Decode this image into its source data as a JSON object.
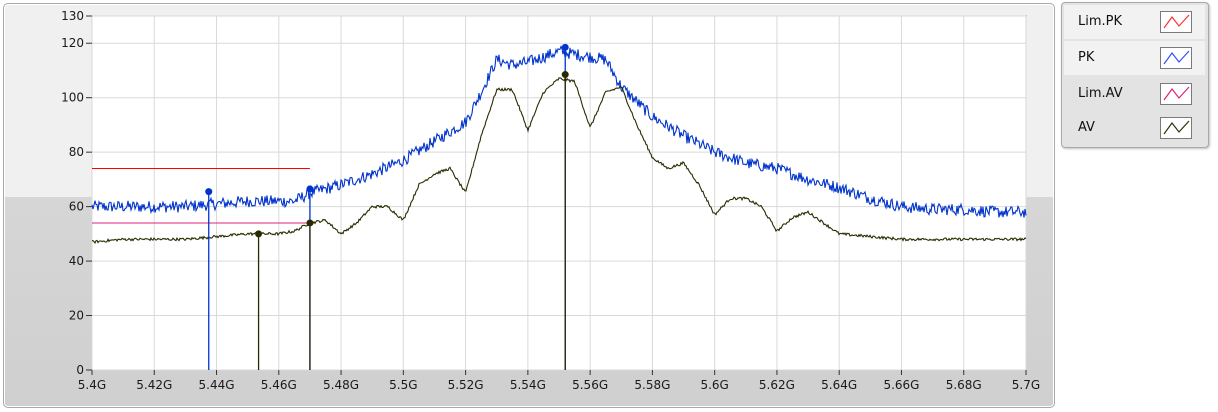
{
  "chart_data": {
    "type": "line",
    "title": "",
    "xlabel": "",
    "ylabel": "",
    "xlim": [
      5.4,
      5.7
    ],
    "ylim": [
      0,
      130
    ],
    "x_ticks": [
      {
        "v": 5.4,
        "label": "5.4G"
      },
      {
        "v": 5.42,
        "label": "5.42G"
      },
      {
        "v": 5.44,
        "label": "5.44G"
      },
      {
        "v": 5.46,
        "label": "5.46G"
      },
      {
        "v": 5.48,
        "label": "5.48G"
      },
      {
        "v": 5.5,
        "label": "5.5G"
      },
      {
        "v": 5.52,
        "label": "5.52G"
      },
      {
        "v": 5.54,
        "label": "5.54G"
      },
      {
        "v": 5.56,
        "label": "5.56G"
      },
      {
        "v": 5.58,
        "label": "5.58G"
      },
      {
        "v": 5.6,
        "label": "5.6G"
      },
      {
        "v": 5.62,
        "label": "5.62G"
      },
      {
        "v": 5.64,
        "label": "5.64G"
      },
      {
        "v": 5.66,
        "label": "5.66G"
      },
      {
        "v": 5.68,
        "label": "5.68G"
      },
      {
        "v": 5.7,
        "label": "5.7G"
      }
    ],
    "y_ticks": [
      {
        "v": 0,
        "label": "0"
      },
      {
        "v": 20,
        "label": "20"
      },
      {
        "v": 40,
        "label": "40"
      },
      {
        "v": 60,
        "label": "60"
      },
      {
        "v": 80,
        "label": "80"
      },
      {
        "v": 100,
        "label": "100"
      },
      {
        "v": 120,
        "label": "120"
      },
      {
        "v": 130,
        "label": "130"
      }
    ],
    "grid": true,
    "legend_position": "outside-top-right",
    "series": [
      {
        "name": "Lim.PK",
        "color": "#ff0000",
        "x": [
          5.4,
          5.47
        ],
        "y": [
          74,
          74
        ]
      },
      {
        "name": "PK",
        "color": "#0033cc",
        "x": [
          5.4,
          5.41,
          5.42,
          5.43,
          5.44,
          5.45,
          5.46,
          5.465,
          5.47,
          5.48,
          5.49,
          5.5,
          5.51,
          5.52,
          5.525,
          5.53,
          5.535,
          5.54,
          5.545,
          5.55,
          5.555,
          5.56,
          5.565,
          5.57,
          5.58,
          5.59,
          5.6,
          5.61,
          5.62,
          5.63,
          5.64,
          5.65,
          5.66,
          5.67,
          5.68,
          5.69,
          5.7
        ],
        "y": [
          60,
          60,
          60,
          60,
          61,
          62,
          62,
          62,
          65,
          68,
          72,
          77,
          84,
          91,
          102,
          114,
          112,
          113,
          115,
          117,
          116,
          115,
          114,
          104,
          93,
          86,
          80,
          76,
          74,
          70,
          67,
          63,
          60,
          59,
          59,
          58,
          58
        ]
      },
      {
        "name": "Lim.AV",
        "color": "#e0207f",
        "x": [
          5.4,
          5.47
        ],
        "y": [
          54,
          54
        ]
      },
      {
        "name": "AV",
        "color": "#2a2a00",
        "x": [
          5.4,
          5.41,
          5.42,
          5.43,
          5.44,
          5.45,
          5.46,
          5.465,
          5.47,
          5.475,
          5.48,
          5.485,
          5.49,
          5.495,
          5.5,
          5.505,
          5.51,
          5.515,
          5.52,
          5.525,
          5.53,
          5.535,
          5.54,
          5.545,
          5.55,
          5.555,
          5.56,
          5.565,
          5.57,
          5.575,
          5.58,
          5.585,
          5.59,
          5.595,
          5.6,
          5.605,
          5.61,
          5.615,
          5.62,
          5.625,
          5.63,
          5.635,
          5.64,
          5.65,
          5.66,
          5.67,
          5.68,
          5.69,
          5.7
        ],
        "y": [
          47,
          48,
          48,
          48,
          49,
          50,
          50,
          51,
          54,
          55,
          50,
          54,
          60,
          60,
          55,
          68,
          72,
          74,
          65,
          86,
          103,
          103,
          88,
          102,
          107,
          106,
          89,
          102,
          104,
          90,
          78,
          74,
          76,
          68,
          57,
          63,
          63,
          60,
          51,
          56,
          58,
          54,
          50,
          49,
          48,
          48,
          48,
          48,
          48
        ]
      }
    ],
    "markers": [
      {
        "series": "PK",
        "x": 5.4375,
        "y": 65.5
      },
      {
        "series": "PK",
        "x": 5.47,
        "y": 66.5
      },
      {
        "series": "AV",
        "x": 5.4535,
        "y": 50
      },
      {
        "series": "AV",
        "x": 5.47,
        "y": 54
      },
      {
        "series": "PK",
        "x": 5.552,
        "y": 118.5
      },
      {
        "series": "AV",
        "x": 5.552,
        "y": 108.5
      }
    ]
  },
  "legend": {
    "items": [
      {
        "label": "Lim.PK",
        "color": "#ff3030"
      },
      {
        "label": "PK",
        "color": "#3050ff"
      },
      {
        "label": "Lim.AV",
        "color": "#e0207f"
      },
      {
        "label": "AV",
        "color": "#303010"
      }
    ]
  }
}
